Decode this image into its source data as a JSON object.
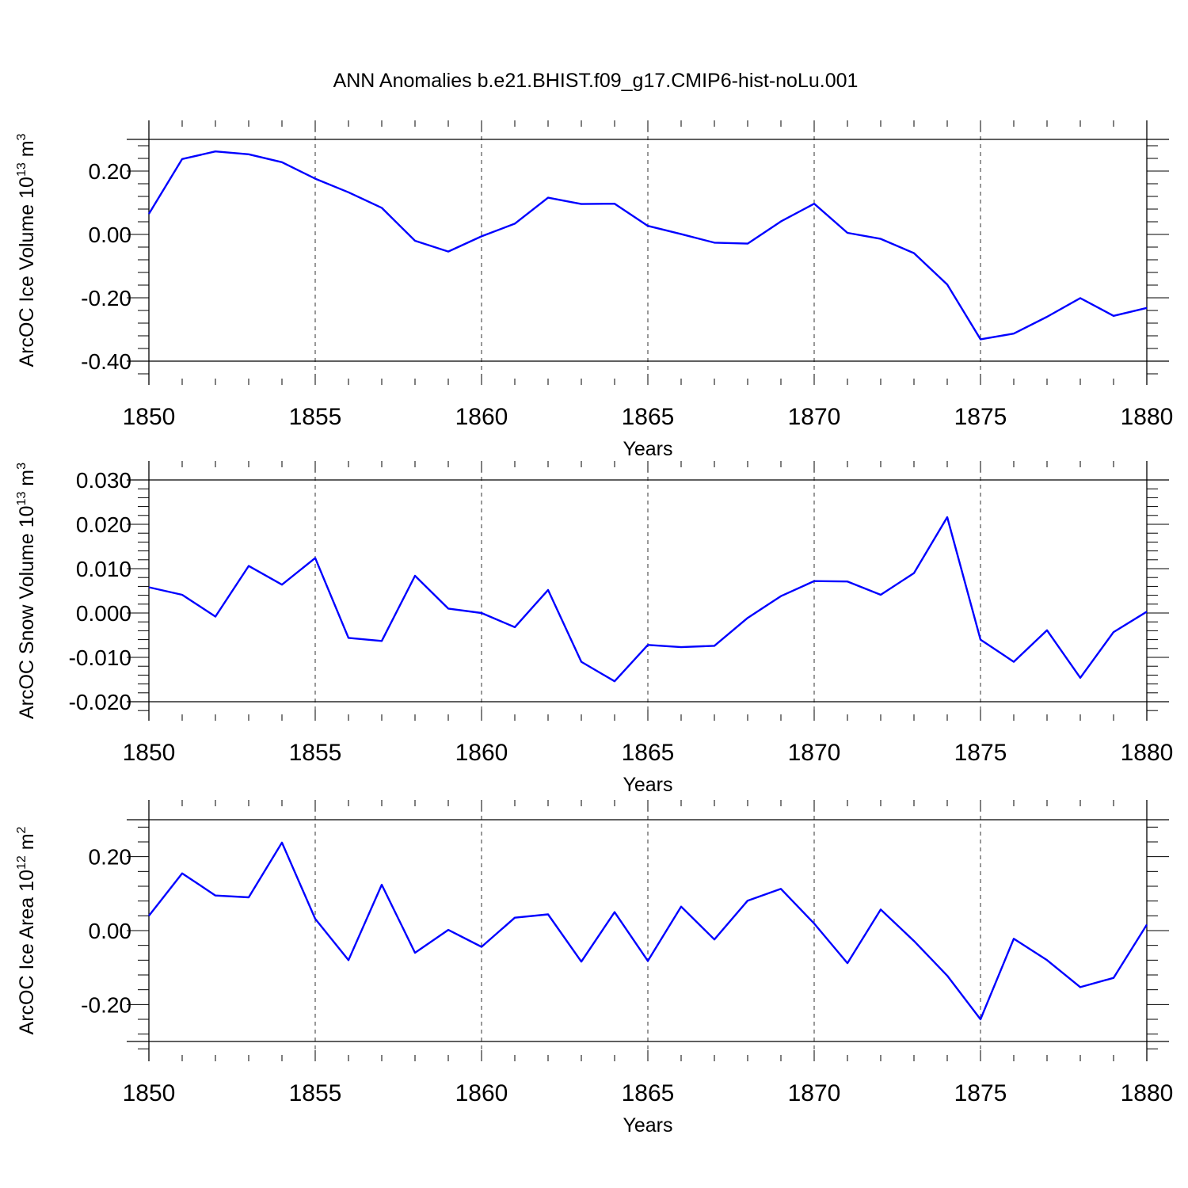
{
  "title": "ANN Anomalies b.e21.BHIST.f09_g17.CMIP6-hist-noLu.001",
  "line_color": "#0000ff",
  "chart_data": [
    {
      "type": "line",
      "ylabel": "ArcOC Ice Volume",
      "yunit": {
        "base": "10",
        "exp": "13",
        "unit": " m",
        "unit_exp": "3"
      },
      "xlabel": "Years",
      "xlim": [
        1850,
        1880
      ],
      "ylim": [
        -0.4,
        0.3
      ],
      "xticks": [
        1850,
        1855,
        1860,
        1865,
        1870,
        1875,
        1880
      ],
      "xtick_labels": [
        "1850",
        "1855",
        "1860",
        "1865",
        "1870",
        "1875",
        "1880"
      ],
      "yticks": [
        -0.4,
        -0.2,
        0.0,
        0.2
      ],
      "ytick_labels": [
        "-0.40",
        "-0.20",
        "0.00",
        "0.20"
      ],
      "grid": "x dashed",
      "series": [
        {
          "x": [
            1850,
            1851,
            1852,
            1853,
            1854,
            1855,
            1856,
            1857,
            1858,
            1859,
            1860,
            1861,
            1862,
            1863,
            1864,
            1865,
            1866,
            1867,
            1868,
            1869,
            1870,
            1871,
            1872,
            1873,
            1874,
            1875,
            1876,
            1877,
            1878,
            1879,
            1880
          ],
          "values": [
            0.065,
            0.238,
            0.262,
            0.253,
            0.228,
            0.176,
            0.133,
            0.084,
            -0.02,
            -0.054,
            -0.006,
            0.034,
            0.116,
            0.096,
            0.097,
            0.027,
            0.001,
            -0.026,
            -0.029,
            0.041,
            0.097,
            0.005,
            -0.014,
            -0.059,
            -0.158,
            -0.331,
            -0.313,
            -0.26,
            -0.201,
            -0.257,
            -0.232
          ]
        }
      ]
    },
    {
      "type": "line",
      "ylabel": "ArcOC Snow Volume",
      "yunit": {
        "base": "10",
        "exp": "13",
        "unit": " m",
        "unit_exp": "3"
      },
      "xlabel": "Years",
      "xlim": [
        1850,
        1880
      ],
      "ylim": [
        -0.02,
        0.03
      ],
      "xticks": [
        1850,
        1855,
        1860,
        1865,
        1870,
        1875,
        1880
      ],
      "xtick_labels": [
        "1850",
        "1855",
        "1860",
        "1865",
        "1870",
        "1875",
        "1880"
      ],
      "yticks": [
        -0.02,
        -0.01,
        0.0,
        0.01,
        0.02,
        0.03
      ],
      "ytick_labels": [
        "-0.020",
        "-0.010",
        "0.000",
        "0.010",
        "0.020",
        "0.030"
      ],
      "grid": "x dashed",
      "series": [
        {
          "x": [
            1850,
            1851,
            1852,
            1853,
            1854,
            1855,
            1856,
            1857,
            1858,
            1859,
            1860,
            1861,
            1862,
            1863,
            1864,
            1865,
            1866,
            1867,
            1868,
            1869,
            1870,
            1871,
            1872,
            1873,
            1874,
            1875,
            1876,
            1877,
            1878,
            1879,
            1880
          ],
          "values": [
            0.0058,
            0.0041,
            -0.0008,
            0.0106,
            0.0064,
            0.0124,
            -0.0056,
            -0.0063,
            0.0084,
            0.001,
            0.0,
            -0.0032,
            0.0052,
            -0.011,
            -0.0154,
            -0.0072,
            -0.0077,
            -0.0074,
            -0.0011,
            0.0038,
            0.0072,
            0.0071,
            0.0041,
            0.009,
            0.0216,
            -0.006,
            -0.011,
            -0.0039,
            -0.0146,
            -0.0043,
            0.0003
          ]
        }
      ]
    },
    {
      "type": "line",
      "ylabel": "ArcOC Ice Area",
      "yunit": {
        "base": "10",
        "exp": "12",
        "unit": " m",
        "unit_exp": "2"
      },
      "xlabel": "Years",
      "xlim": [
        1850,
        1880
      ],
      "ylim": [
        -0.3,
        0.3
      ],
      "xticks": [
        1850,
        1855,
        1860,
        1865,
        1870,
        1875,
        1880
      ],
      "xtick_labels": [
        "1850",
        "1855",
        "1860",
        "1865",
        "1870",
        "1875",
        "1880"
      ],
      "yticks": [
        -0.2,
        0.0,
        0.2
      ],
      "ytick_labels": [
        "-0.20",
        "0.00",
        "0.20"
      ],
      "grid": "x dashed",
      "series": [
        {
          "x": [
            1850,
            1851,
            1852,
            1853,
            1854,
            1855,
            1856,
            1857,
            1858,
            1859,
            1860,
            1861,
            1862,
            1863,
            1864,
            1865,
            1866,
            1867,
            1868,
            1869,
            1870,
            1871,
            1872,
            1873,
            1874,
            1875,
            1876,
            1877,
            1878,
            1879,
            1880
          ],
          "values": [
            0.04,
            0.155,
            0.095,
            0.09,
            0.238,
            0.032,
            -0.08,
            0.124,
            -0.06,
            0.002,
            -0.044,
            0.035,
            0.044,
            -0.084,
            0.05,
            -0.082,
            0.065,
            -0.024,
            0.081,
            0.113,
            0.019,
            -0.088,
            0.057,
            -0.028,
            -0.122,
            -0.24,
            -0.022,
            -0.08,
            -0.153,
            -0.128,
            0.016
          ]
        }
      ]
    }
  ]
}
